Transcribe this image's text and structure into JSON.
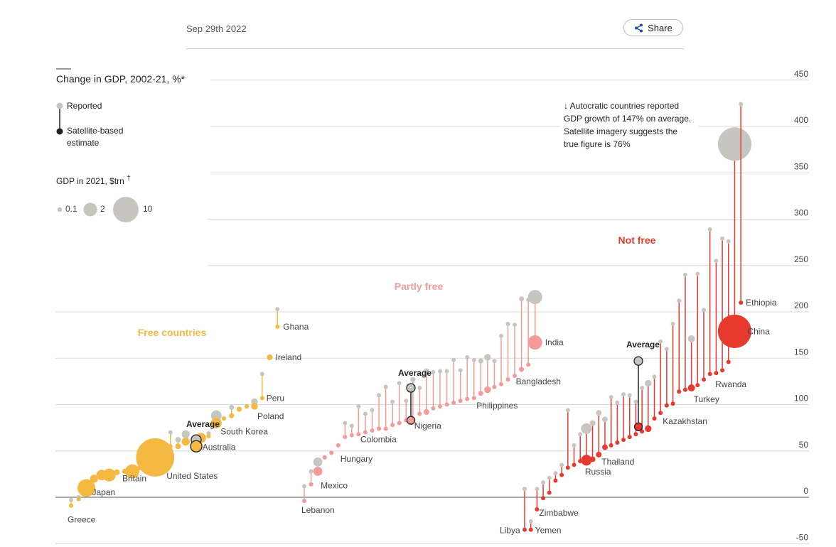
{
  "header": {
    "date": "Sep 29th 2022",
    "share_label": "Share"
  },
  "colors": {
    "free": "#f5b942",
    "partly": "#f59a9a",
    "notfree": "#e8392f",
    "reported": "#c7c5c0",
    "satellite": "#222222",
    "grid": "#d9d9d9"
  },
  "chart_data": {
    "type": "scatter",
    "title": "Change in GDP, 2002-21, %*",
    "ylim": [
      -50,
      450
    ],
    "yticks": [
      -50,
      0,
      50,
      100,
      150,
      200,
      250,
      300,
      350,
      400,
      450
    ],
    "grid": true,
    "legend": {
      "reported": "Reported",
      "satellite": "Satellite-based estimate",
      "size_title": "GDP in 2021, $trn",
      "size_mark": "†",
      "sizes": [
        "0.1",
        "2",
        "10"
      ]
    },
    "annotation": "↓ Autocratic countries reported GDP growth of 147% on average. Satellite imagery suggests the true figure is 76%",
    "groups": [
      {
        "name": "Free countries",
        "average": {
          "label": "Average",
          "reported": 62,
          "satellite": 55
        },
        "countries": [
          {
            "reported": -3,
            "satellite": -9,
            "gdp": 0.2,
            "label": "Greece"
          },
          {
            "reported": 0,
            "satellite": -2,
            "gdp": 0.3
          },
          {
            "reported": 10,
            "satellite": 10,
            "gdp": 4.9,
            "label": "Japan"
          },
          {
            "reported": 20,
            "satellite": 20,
            "gdp": 1.0
          },
          {
            "reported": 24,
            "satellite": 24,
            "gdp": 1.7
          },
          {
            "reported": 24,
            "satellite": 24,
            "gdp": 2.6
          },
          {
            "reported": 27,
            "satellite": 27,
            "gdp": 0.5
          },
          {
            "reported": 28,
            "satellite": 28,
            "gdp": 0.4
          },
          {
            "reported": 28,
            "satellite": 28,
            "gdp": 3.1,
            "label": "Britain"
          },
          {
            "reported": 32,
            "satellite": 32,
            "gdp": 0.4
          },
          {
            "reported": 37,
            "satellite": 37,
            "gdp": 0.3
          },
          {
            "reported": 43,
            "satellite": 43,
            "gdp": 23.0,
            "label": "United States"
          },
          {
            "reported": 48,
            "satellite": 48,
            "gdp": 0.8
          },
          {
            "reported": 70,
            "satellite": 55,
            "gdp": 0.2
          },
          {
            "reported": 62,
            "satellite": 55,
            "gdp": 0.5
          },
          {
            "reported": 68,
            "satellite": 60,
            "gdp": 1.0
          },
          {
            "reported": 58,
            "satellite": 58,
            "gdp": 0.3
          },
          {
            "reported": 64,
            "satellite": 64,
            "gdp": 1.6,
            "label": "Australia"
          },
          {
            "reported": 69,
            "satellite": 66,
            "gdp": 0.3
          },
          {
            "reported": 88,
            "satellite": 80,
            "gdp": 1.8,
            "label": "South Korea"
          },
          {
            "reported": 85,
            "satellite": 85,
            "gdp": 0.2
          },
          {
            "reported": 97,
            "satellite": 88,
            "gdp": 0.4
          },
          {
            "reported": 95,
            "satellite": 95,
            "gdp": 0.4
          },
          {
            "reported": 98,
            "satellite": 98,
            "gdp": 0.3
          },
          {
            "reported": 103,
            "satellite": 98,
            "gdp": 0.7,
            "label": "Poland"
          },
          {
            "reported": 133,
            "satellite": 107,
            "gdp": 0.2,
            "label": "Peru"
          },
          {
            "reported": 151,
            "satellite": 151,
            "gdp": 0.5,
            "label": "Ireland"
          },
          {
            "reported": 203,
            "satellite": 184,
            "gdp": 0.08,
            "label": "Ghana"
          }
        ]
      },
      {
        "name": "Partly free",
        "average": {
          "label": "Average",
          "reported": 118,
          "satellite": 83
        },
        "countries": [
          {
            "reported": 12,
            "satellite": -4,
            "gdp": 0.05,
            "label": "Lebanon"
          },
          {
            "reported": 28,
            "satellite": 14,
            "gdp": 0.1
          },
          {
            "reported": 38,
            "satellite": 28,
            "gdp": 1.3,
            "label": "Mexico"
          },
          {
            "reported": 43,
            "satellite": 43,
            "gdp": 0.1
          },
          {
            "reported": 48,
            "satellite": 48,
            "gdp": 0.1
          },
          {
            "reported": 56,
            "satellite": 56,
            "gdp": 0.15,
            "label": "Hungary"
          },
          {
            "reported": 80,
            "satellite": 65,
            "gdp": 0.1
          },
          {
            "reported": 77,
            "satellite": 67,
            "gdp": 0.1
          },
          {
            "reported": 98,
            "satellite": 68,
            "gdp": 0.1
          },
          {
            "reported": 90,
            "satellite": 70,
            "gdp": 0.1
          },
          {
            "reported": 94,
            "satellite": 72,
            "gdp": 0.1
          },
          {
            "reported": 110,
            "satellite": 74,
            "gdp": 0.3,
            "label": "Colombia"
          },
          {
            "reported": 119,
            "satellite": 74,
            "gdp": 0.3
          },
          {
            "reported": 103,
            "satellite": 78,
            "gdp": 0.2
          },
          {
            "reported": 123,
            "satellite": 80,
            "gdp": 0.1
          },
          {
            "reported": 104,
            "satellite": 83,
            "gdp": 0.2
          },
          {
            "reported": 127,
            "satellite": 84,
            "gdp": 0.4,
            "label": "Nigeria"
          },
          {
            "reported": 118,
            "satellite": 90,
            "gdp": 0.1
          },
          {
            "reported": 136,
            "satellite": 92,
            "gdp": 0.5
          },
          {
            "reported": 135,
            "satellite": 96,
            "gdp": 0.1
          },
          {
            "reported": 136,
            "satellite": 98,
            "gdp": 0.1
          },
          {
            "reported": 136,
            "satellite": 100,
            "gdp": 0.1
          },
          {
            "reported": 148,
            "satellite": 102,
            "gdp": 0.1
          },
          {
            "reported": 137,
            "satellite": 104,
            "gdp": 0.1
          },
          {
            "reported": 151,
            "satellite": 106,
            "gdp": 0.1
          },
          {
            "reported": 148,
            "satellite": 107,
            "gdp": 0.2
          },
          {
            "reported": 147,
            "satellite": 112,
            "gdp": 0.4,
            "label": "Philippines"
          },
          {
            "reported": 151,
            "satellite": 116,
            "gdp": 0.7
          },
          {
            "reported": 147,
            "satellite": 119,
            "gdp": 0.1
          },
          {
            "reported": 174,
            "satellite": 122,
            "gdp": 0.1
          },
          {
            "reported": 187,
            "satellite": 127,
            "gdp": 0.1
          },
          {
            "reported": 186,
            "satellite": 131,
            "gdp": 0.1
          },
          {
            "reported": 214,
            "satellite": 138,
            "gdp": 0.4,
            "label": "Bangladesh"
          },
          {
            "reported": 213,
            "satellite": 143,
            "gdp": 0.1
          },
          {
            "reported": 216,
            "satellite": 167,
            "gdp": 3.2,
            "label": "India"
          }
        ]
      },
      {
        "name": "Not free",
        "average": {
          "label": "Average",
          "reported": 147,
          "satellite": 76
        },
        "countries": [
          {
            "reported": 9,
            "satellite": -35,
            "gdp": 0.04,
            "label": "Libya"
          },
          {
            "reported": -26,
            "satellite": -35,
            "gdp": 0.03,
            "label": "Yemen"
          },
          {
            "reported": 9,
            "satellite": -13,
            "gdp": 0.03,
            "label": "Zimbabwe"
          },
          {
            "reported": 16,
            "satellite": -1,
            "gdp": 0.05
          },
          {
            "reported": 21,
            "satellite": 5,
            "gdp": 0.05
          },
          {
            "reported": 26,
            "satellite": 18,
            "gdp": 0.05
          },
          {
            "reported": 35,
            "satellite": 24,
            "gdp": 0.05
          },
          {
            "reported": 94,
            "satellite": 32,
            "gdp": 0.1
          },
          {
            "reported": 56,
            "satellite": 35,
            "gdp": 0.1
          },
          {
            "reported": 68,
            "satellite": 39,
            "gdp": 0.1
          },
          {
            "reported": 74,
            "satellite": 40,
            "gdp": 1.8,
            "label": "Russia"
          },
          {
            "reported": 80,
            "satellite": 41,
            "gdp": 0.5
          },
          {
            "reported": 91,
            "satellite": 46,
            "gdp": 0.5,
            "label": "Thailand"
          },
          {
            "reported": 84,
            "satellite": 54,
            "gdp": 0.5
          },
          {
            "reported": 108,
            "satellite": 56,
            "gdp": 0.1
          },
          {
            "reported": 102,
            "satellite": 59,
            "gdp": 0.1
          },
          {
            "reported": 111,
            "satellite": 62,
            "gdp": 0.1
          },
          {
            "reported": 110,
            "satellite": 65,
            "gdp": 0.1
          },
          {
            "reported": 103,
            "satellite": 68,
            "gdp": 0.1
          },
          {
            "reported": 118,
            "satellite": 71,
            "gdp": 0.2
          },
          {
            "reported": 123,
            "satellite": 74,
            "gdp": 0.7
          },
          {
            "reported": 130,
            "satellite": 85,
            "gdp": 0.05
          },
          {
            "reported": 168,
            "satellite": 91,
            "gdp": 0.2,
            "label": "Kazakhstan"
          },
          {
            "reported": 160,
            "satellite": 99,
            "gdp": 0.05
          },
          {
            "reported": 187,
            "satellite": 101,
            "gdp": 0.05
          },
          {
            "reported": 212,
            "satellite": 114,
            "gdp": 0.3
          },
          {
            "reported": 240,
            "satellite": 116,
            "gdp": 0.2
          },
          {
            "reported": 171,
            "satellite": 118,
            "gdp": 0.8,
            "label": "Turkey"
          },
          {
            "reported": 241,
            "satellite": 121,
            "gdp": 0.05
          },
          {
            "reported": 202,
            "satellite": 127,
            "gdp": 0.05
          },
          {
            "reported": 289,
            "satellite": 133,
            "gdp": 0.05
          },
          {
            "reported": 255,
            "satellite": 134,
            "gdp": 0.05
          },
          {
            "reported": 279,
            "satellite": 137,
            "gdp": 0.02,
            "label": "Rwanda"
          },
          {
            "reported": 276,
            "satellite": 146,
            "gdp": 0.05
          },
          {
            "reported": 381,
            "satellite": 179,
            "gdp": 17.7,
            "label": "China"
          },
          {
            "reported": 424,
            "satellite": 210,
            "gdp": 0.1,
            "label": "Ethiopia"
          }
        ]
      }
    ]
  }
}
